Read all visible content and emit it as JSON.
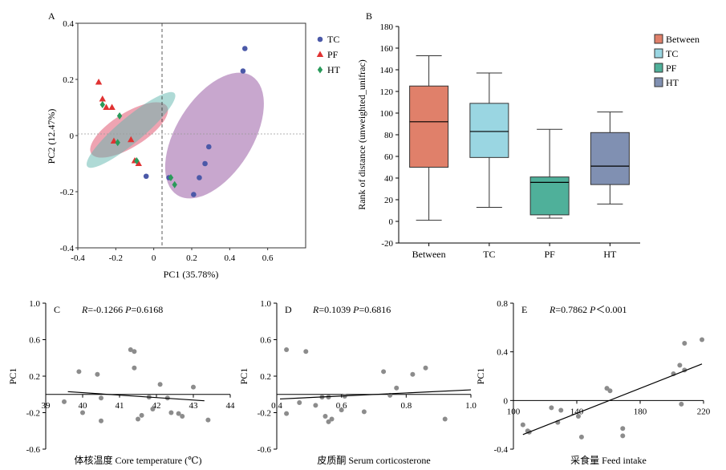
{
  "chart_data": [
    {
      "panel": "A",
      "type": "scatter",
      "xlabel": "PC1 (35.78%)",
      "ylabel": "PC2 (12.47%)",
      "xlim": [
        -0.4,
        0.8
      ],
      "ylim": [
        -0.4,
        0.4
      ],
      "xticks": [
        "-0.4",
        "-0.2",
        "0",
        "0.2",
        "0.4",
        "0.6"
      ],
      "yticks": [
        "0.4",
        "0.2",
        "0",
        "-0.2",
        "-0.4"
      ],
      "legend": "right",
      "legend_items": [
        {
          "name": "TC",
          "marker": "circle",
          "color": "#4b59a8"
        },
        {
          "name": "PF",
          "marker": "triangle",
          "color": "#e03232"
        },
        {
          "name": "HT",
          "marker": "diamond",
          "color": "#2a9a5a"
        }
      ],
      "series": [
        {
          "name": "TC",
          "points": [
            [
              0.48,
              0.31
            ],
            [
              0.47,
              0.23
            ],
            [
              0.29,
              -0.04
            ],
            [
              0.27,
              -0.1
            ],
            [
              0.24,
              -0.15
            ],
            [
              0.21,
              -0.21
            ],
            [
              -0.04,
              -0.145
            ],
            [
              0.08,
              -0.15
            ]
          ]
        },
        {
          "name": "PF",
          "points": [
            [
              -0.29,
              0.19
            ],
            [
              -0.27,
              0.13
            ],
            [
              -0.25,
              0.1
            ],
            [
              -0.22,
              0.1
            ],
            [
              -0.21,
              -0.02
            ],
            [
              -0.12,
              -0.015
            ],
            [
              -0.1,
              -0.09
            ],
            [
              -0.08,
              -0.1
            ]
          ]
        },
        {
          "name": "HT",
          "points": [
            [
              -0.27,
              0.11
            ],
            [
              -0.18,
              0.07
            ],
            [
              -0.19,
              -0.025
            ],
            [
              -0.09,
              -0.09
            ],
            [
              0.09,
              -0.15
            ],
            [
              0.11,
              -0.175
            ]
          ]
        }
      ]
    },
    {
      "panel": "B",
      "type": "box",
      "ylabel": "Rank of distance (unweighted_unifrac)",
      "ylim": [
        -20,
        180
      ],
      "yticks": [
        "180",
        "160",
        "140",
        "120",
        "100",
        "80",
        "60",
        "40",
        "20",
        "0",
        "-20"
      ],
      "legend": "right",
      "categories": [
        "Between",
        "TC",
        "PF",
        "HT"
      ],
      "boxes": [
        {
          "name": "Between",
          "color": "#e0806a",
          "min": 1,
          "q1": 50,
          "median": 92,
          "q3": 125,
          "max": 153
        },
        {
          "name": "TC",
          "color": "#9ad6e2",
          "min": 13,
          "q1": 59,
          "median": 83,
          "q3": 109,
          "max": 137
        },
        {
          "name": "PF",
          "color": "#4fb09a",
          "min": 3,
          "q1": 6,
          "median": 36,
          "q3": 41,
          "max": 85
        },
        {
          "name": "HT",
          "color": "#8090b2",
          "min": 16,
          "q1": 34,
          "median": 51,
          "q3": 82,
          "max": 101
        }
      ]
    },
    {
      "panel": "C",
      "type": "scatter",
      "annotation_r": "R",
      "annotation_r_val": "=-0.1266 ",
      "annotation_p": "P",
      "annotation_p_val": "=0.6168",
      "xlabel": "体核温度 Core temperature (℃)",
      "ylabel": "PC1",
      "xlim": [
        39,
        44
      ],
      "ylim": [
        -0.6,
        1.0
      ],
      "xticks": [
        "39",
        "40",
        "41",
        "42",
        "43",
        "44"
      ],
      "yticks": [
        "1.0",
        "0.6",
        "0.2",
        "-0.2",
        "-0.6"
      ],
      "points": [
        [
          39.5,
          -0.08
        ],
        [
          39.9,
          0.25
        ],
        [
          40.0,
          -0.2
        ],
        [
          40.4,
          0.22
        ],
        [
          40.5,
          -0.04
        ],
        [
          40.5,
          -0.29
        ],
        [
          41.3,
          0.49
        ],
        [
          41.4,
          0.47
        ],
        [
          41.4,
          0.29
        ],
        [
          41.5,
          -0.27
        ],
        [
          41.6,
          -0.23
        ],
        [
          41.8,
          -0.03
        ],
        [
          41.9,
          -0.16
        ],
        [
          42.1,
          0.11
        ],
        [
          42.3,
          -0.04
        ],
        [
          42.4,
          -0.2
        ],
        [
          42.6,
          -0.21
        ],
        [
          42.7,
          -0.24
        ],
        [
          43.0,
          0.08
        ],
        [
          43.4,
          -0.28
        ]
      ],
      "fit": [
        [
          39.6,
          0.03
        ],
        [
          43.3,
          -0.07
        ]
      ]
    },
    {
      "panel": "D",
      "type": "scatter",
      "annotation_r": "R",
      "annotation_r_val": "=0.1039 ",
      "annotation_p": "P",
      "annotation_p_val": "=0.6816",
      "xlabel": "皮质酮 Serum corticosterone",
      "ylabel": "PC1",
      "xlim": [
        0.4,
        1.0
      ],
      "ylim": [
        -0.6,
        1.0
      ],
      "xticks": [
        "0.4",
        "0.6",
        "0.8",
        "1.0"
      ],
      "yticks": [
        "1.0",
        "0.6",
        "0.2",
        "-0.2",
        "-0.6"
      ],
      "points": [
        [
          0.43,
          0.49
        ],
        [
          0.43,
          -0.21
        ],
        [
          0.47,
          -0.09
        ],
        [
          0.49,
          0.47
        ],
        [
          0.52,
          -0.12
        ],
        [
          0.54,
          -0.03
        ],
        [
          0.55,
          -0.24
        ],
        [
          0.56,
          -0.03
        ],
        [
          0.56,
          -0.3
        ],
        [
          0.57,
          -0.27
        ],
        [
          0.6,
          -0.17
        ],
        [
          0.61,
          -0.02
        ],
        [
          0.67,
          -0.19
        ],
        [
          0.73,
          0.25
        ],
        [
          0.75,
          -0.01
        ],
        [
          0.77,
          0.07
        ],
        [
          0.82,
          0.22
        ],
        [
          0.86,
          0.29
        ],
        [
          0.92,
          -0.27
        ]
      ],
      "fit": [
        [
          0.41,
          -0.05
        ],
        [
          1.0,
          0.05
        ]
      ]
    },
    {
      "panel": "E",
      "type": "scatter",
      "annotation_r": "R",
      "annotation_r_val": "=0.7862 ",
      "annotation_p": "P",
      "annotation_p_val": "＜0.001",
      "xlabel": "采食量 Feed intake",
      "ylabel": "PC1",
      "xlim": [
        100,
        220
      ],
      "ylim": [
        -0.4,
        0.8
      ],
      "xticks": [
        "100",
        "140",
        "180",
        "220"
      ],
      "yticks": [
        "0.8",
        "0.4",
        "0",
        "-0.4"
      ],
      "points": [
        [
          106,
          -0.2
        ],
        [
          109,
          -0.25
        ],
        [
          110,
          -0.26
        ],
        [
          124,
          -0.06
        ],
        [
          128,
          -0.18
        ],
        [
          130,
          -0.08
        ],
        [
          141,
          -0.13
        ],
        [
          143,
          -0.3
        ],
        [
          159,
          0.1
        ],
        [
          161,
          0.08
        ],
        [
          169,
          -0.29
        ],
        [
          169,
          -0.23
        ],
        [
          201,
          0.22
        ],
        [
          205,
          0.29
        ],
        [
          206,
          -0.03
        ],
        [
          208,
          0.25
        ],
        [
          208,
          0.47
        ],
        [
          219,
          0.5
        ]
      ],
      "fit": [
        [
          106,
          -0.28
        ],
        [
          219,
          0.3
        ]
      ]
    }
  ]
}
